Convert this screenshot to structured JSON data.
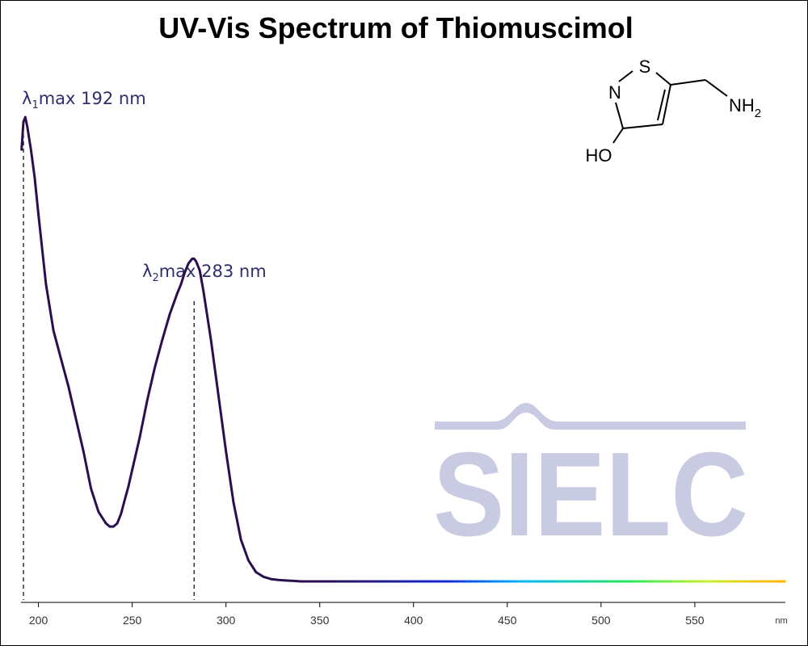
{
  "chart_data": {
    "type": "line",
    "title": "UV-Vis Spectrum of Thiomuscimol",
    "xlabel": "nm",
    "ylabel": "",
    "xlim": [
      191,
      598
    ],
    "ylim": [
      0,
      1
    ],
    "x_ticks": [
      200,
      250,
      300,
      350,
      400,
      450,
      500,
      550
    ],
    "grid": false,
    "legend": "none",
    "annotations": [
      {
        "label": "λ",
        "sub": "1",
        "rest": "max  192 nm",
        "x": 192
      },
      {
        "label": "λ",
        "sub": "2",
        "rest": "max  283 nm",
        "x": 283
      }
    ],
    "series": [
      {
        "x": [
          191,
          192,
          193,
          194,
          196,
          198,
          200,
          204,
          208,
          212,
          216,
          220,
          224,
          228,
          232,
          236,
          238,
          240,
          242,
          244,
          246,
          248,
          250,
          254,
          258,
          262,
          266,
          270,
          274,
          276,
          278,
          280,
          282,
          283,
          284,
          286,
          288,
          292,
          296,
          300,
          304,
          308,
          312,
          316,
          320,
          324,
          328,
          332,
          336,
          340,
          350,
          400,
          450,
          500,
          550,
          598
        ],
        "values": [
          0.93,
          0.99,
          1.0,
          0.98,
          0.93,
          0.87,
          0.79,
          0.64,
          0.54,
          0.48,
          0.42,
          0.35,
          0.28,
          0.2,
          0.15,
          0.125,
          0.118,
          0.118,
          0.125,
          0.145,
          0.175,
          0.205,
          0.24,
          0.31,
          0.39,
          0.46,
          0.52,
          0.575,
          0.62,
          0.64,
          0.665,
          0.685,
          0.695,
          0.695,
          0.69,
          0.67,
          0.625,
          0.52,
          0.4,
          0.28,
          0.17,
          0.09,
          0.045,
          0.02,
          0.01,
          0.005,
          0.003,
          0.002,
          0.001,
          0.0,
          0.0,
          0.0,
          0.0,
          0.0,
          0.0,
          0.0
        ]
      }
    ]
  },
  "structure": {
    "atoms": {
      "s": "S",
      "n": "N",
      "ho": "HO",
      "nh": "NH",
      "nh_sub": "2"
    }
  },
  "watermark": {
    "text": "SIELC"
  },
  "colors": {
    "uv_line": "#2a0f4e",
    "watermark": "#c9cbe3",
    "label": "#2e2e6e",
    "visible_gradient": [
      "#2a0f4e",
      "#1428d6",
      "#00b4ff",
      "#22e85a",
      "#c8f02a",
      "#ffb300"
    ]
  }
}
